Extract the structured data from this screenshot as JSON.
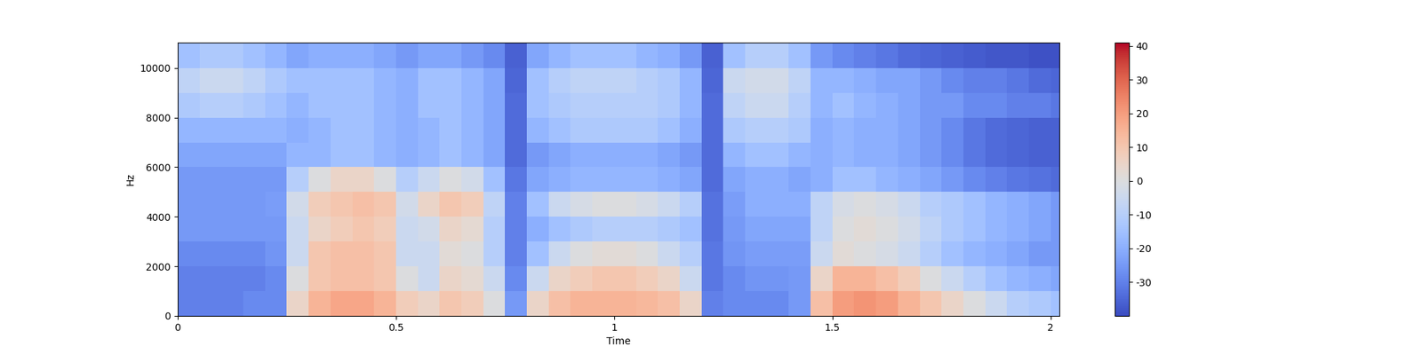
{
  "chart_data": {
    "type": "heatmap",
    "x_label": "Time",
    "y_label": "Hz",
    "color": "coolwarm",
    "xlim": [
      0,
      2.02
    ],
    "ylim": [
      0,
      11025
    ],
    "xticks": [
      0,
      0.5,
      1,
      1.5,
      2
    ],
    "yticks": [
      0,
      2000,
      4000,
      6000,
      8000,
      10000
    ],
    "x_edges": [
      0,
      0.05,
      0.1,
      0.15,
      0.2,
      0.25,
      0.3,
      0.35,
      0.4,
      0.45,
      0.5,
      0.55,
      0.6,
      0.65,
      0.7,
      0.75,
      0.8,
      0.85,
      0.9,
      0.95,
      1.0,
      1.05,
      1.1,
      1.15,
      1.2,
      1.25,
      1.3,
      1.35,
      1.4,
      1.45,
      1.5,
      1.55,
      1.6,
      1.65,
      1.7,
      1.75,
      1.8,
      1.85,
      1.9,
      1.95,
      2.0,
      2.02
    ],
    "y_edges": [
      0,
      1000,
      2000,
      3000,
      4000,
      5000,
      6000,
      7000,
      8000,
      9000,
      10000,
      11025
    ],
    "cells": [
      [
        -30,
        -30,
        -30,
        -28,
        -28,
        5,
        15,
        18,
        18,
        15,
        8,
        5,
        10,
        8,
        0,
        -25,
        5,
        12,
        15,
        15,
        15,
        14,
        12,
        5,
        -30,
        -28,
        -28,
        -28,
        -25,
        12,
        20,
        22,
        20,
        15,
        10,
        5,
        0,
        -5,
        -10,
        -12,
        -15
      ],
      [
        -30,
        -30,
        -30,
        -30,
        -28,
        0,
        10,
        12,
        12,
        10,
        0,
        -5,
        5,
        3,
        -5,
        -28,
        -5,
        5,
        8,
        10,
        10,
        8,
        5,
        -5,
        -32,
        -28,
        -26,
        -26,
        -25,
        5,
        15,
        15,
        12,
        8,
        0,
        -5,
        -10,
        -15,
        -18,
        -20,
        -22
      ],
      [
        -28,
        -28,
        -28,
        -28,
        -26,
        -5,
        10,
        12,
        12,
        10,
        -5,
        -5,
        2,
        0,
        -10,
        -30,
        -15,
        -5,
        0,
        2,
        2,
        0,
        -5,
        -10,
        -32,
        -26,
        -24,
        -24,
        -24,
        -5,
        2,
        0,
        -2,
        -5,
        -10,
        -15,
        -18,
        -20,
        -22,
        -25,
        -25
      ],
      [
        -25,
        -25,
        -25,
        -25,
        -25,
        -5,
        5,
        8,
        10,
        8,
        -5,
        -3,
        5,
        3,
        -10,
        -30,
        -20,
        -15,
        -12,
        -10,
        -10,
        -10,
        -12,
        -15,
        -33,
        -25,
        -22,
        -22,
        -22,
        -8,
        0,
        2,
        0,
        -3,
        -8,
        -12,
        -15,
        -18,
        -20,
        -22,
        -25
      ],
      [
        -25,
        -25,
        -25,
        -25,
        -24,
        -3,
        8,
        10,
        12,
        10,
        -3,
        5,
        10,
        8,
        -8,
        -30,
        -15,
        -5,
        -2,
        0,
        0,
        -2,
        -5,
        -10,
        -33,
        -24,
        -20,
        -20,
        -20,
        -8,
        -2,
        0,
        -2,
        -5,
        -10,
        -12,
        -15,
        -18,
        -20,
        -22,
        -25
      ],
      [
        -25,
        -25,
        -25,
        -25,
        -25,
        -10,
        0,
        5,
        5,
        0,
        -10,
        -5,
        0,
        -3,
        -15,
        -32,
        -22,
        -20,
        -18,
        -18,
        -18,
        -18,
        -20,
        -22,
        -34,
        -22,
        -20,
        -20,
        -22,
        -20,
        -15,
        -15,
        -18,
        -20,
        -22,
        -25,
        -28,
        -30,
        -32,
        -33,
        -34
      ],
      [
        -22,
        -22,
        -22,
        -22,
        -22,
        -18,
        -18,
        -15,
        -15,
        -18,
        -20,
        -18,
        -15,
        -18,
        -22,
        -34,
        -25,
        -22,
        -20,
        -20,
        -20,
        -20,
        -22,
        -25,
        -34,
        -18,
        -15,
        -15,
        -18,
        -20,
        -18,
        -20,
        -20,
        -22,
        -25,
        -28,
        -32,
        -34,
        -35,
        -36,
        -36
      ],
      [
        -18,
        -18,
        -18,
        -18,
        -18,
        -20,
        -18,
        -15,
        -15,
        -18,
        -20,
        -18,
        -15,
        -18,
        -22,
        -34,
        -18,
        -15,
        -12,
        -12,
        -12,
        -12,
        -15,
        -20,
        -34,
        -12,
        -10,
        -10,
        -12,
        -20,
        -18,
        -20,
        -20,
        -22,
        -25,
        -28,
        -32,
        -34,
        -35,
        -36,
        -36
      ],
      [
        -12,
        -10,
        -10,
        -12,
        -15,
        -18,
        -15,
        -15,
        -15,
        -18,
        -20,
        -15,
        -15,
        -18,
        -22,
        -34,
        -15,
        -12,
        -10,
        -10,
        -10,
        -10,
        -12,
        -18,
        -34,
        -8,
        -5,
        -5,
        -10,
        -18,
        -15,
        -18,
        -20,
        -22,
        -25,
        -25,
        -28,
        -28,
        -30,
        -30,
        -32
      ],
      [
        -8,
        -5,
        -5,
        -8,
        -12,
        -15,
        -15,
        -15,
        -15,
        -18,
        -20,
        -15,
        -15,
        -18,
        -22,
        -35,
        -15,
        -10,
        -8,
        -8,
        -8,
        -10,
        -12,
        -18,
        -35,
        -5,
        -3,
        -3,
        -8,
        -18,
        -18,
        -20,
        -22,
        -22,
        -25,
        -28,
        -30,
        -30,
        -32,
        -34,
        -35
      ],
      [
        -15,
        -12,
        -12,
        -15,
        -18,
        -22,
        -20,
        -20,
        -20,
        -22,
        -25,
        -22,
        -22,
        -25,
        -28,
        -36,
        -22,
        -18,
        -15,
        -15,
        -15,
        -18,
        -20,
        -25,
        -36,
        -15,
        -10,
        -10,
        -15,
        -25,
        -28,
        -30,
        -32,
        -34,
        -35,
        -36,
        -37,
        -38,
        -38,
        -39,
        -39
      ]
    ],
    "color_range": [
      -40,
      41
    ],
    "color_ticks": [
      -30,
      -20,
      -10,
      0,
      10,
      20,
      30,
      40
    ]
  }
}
